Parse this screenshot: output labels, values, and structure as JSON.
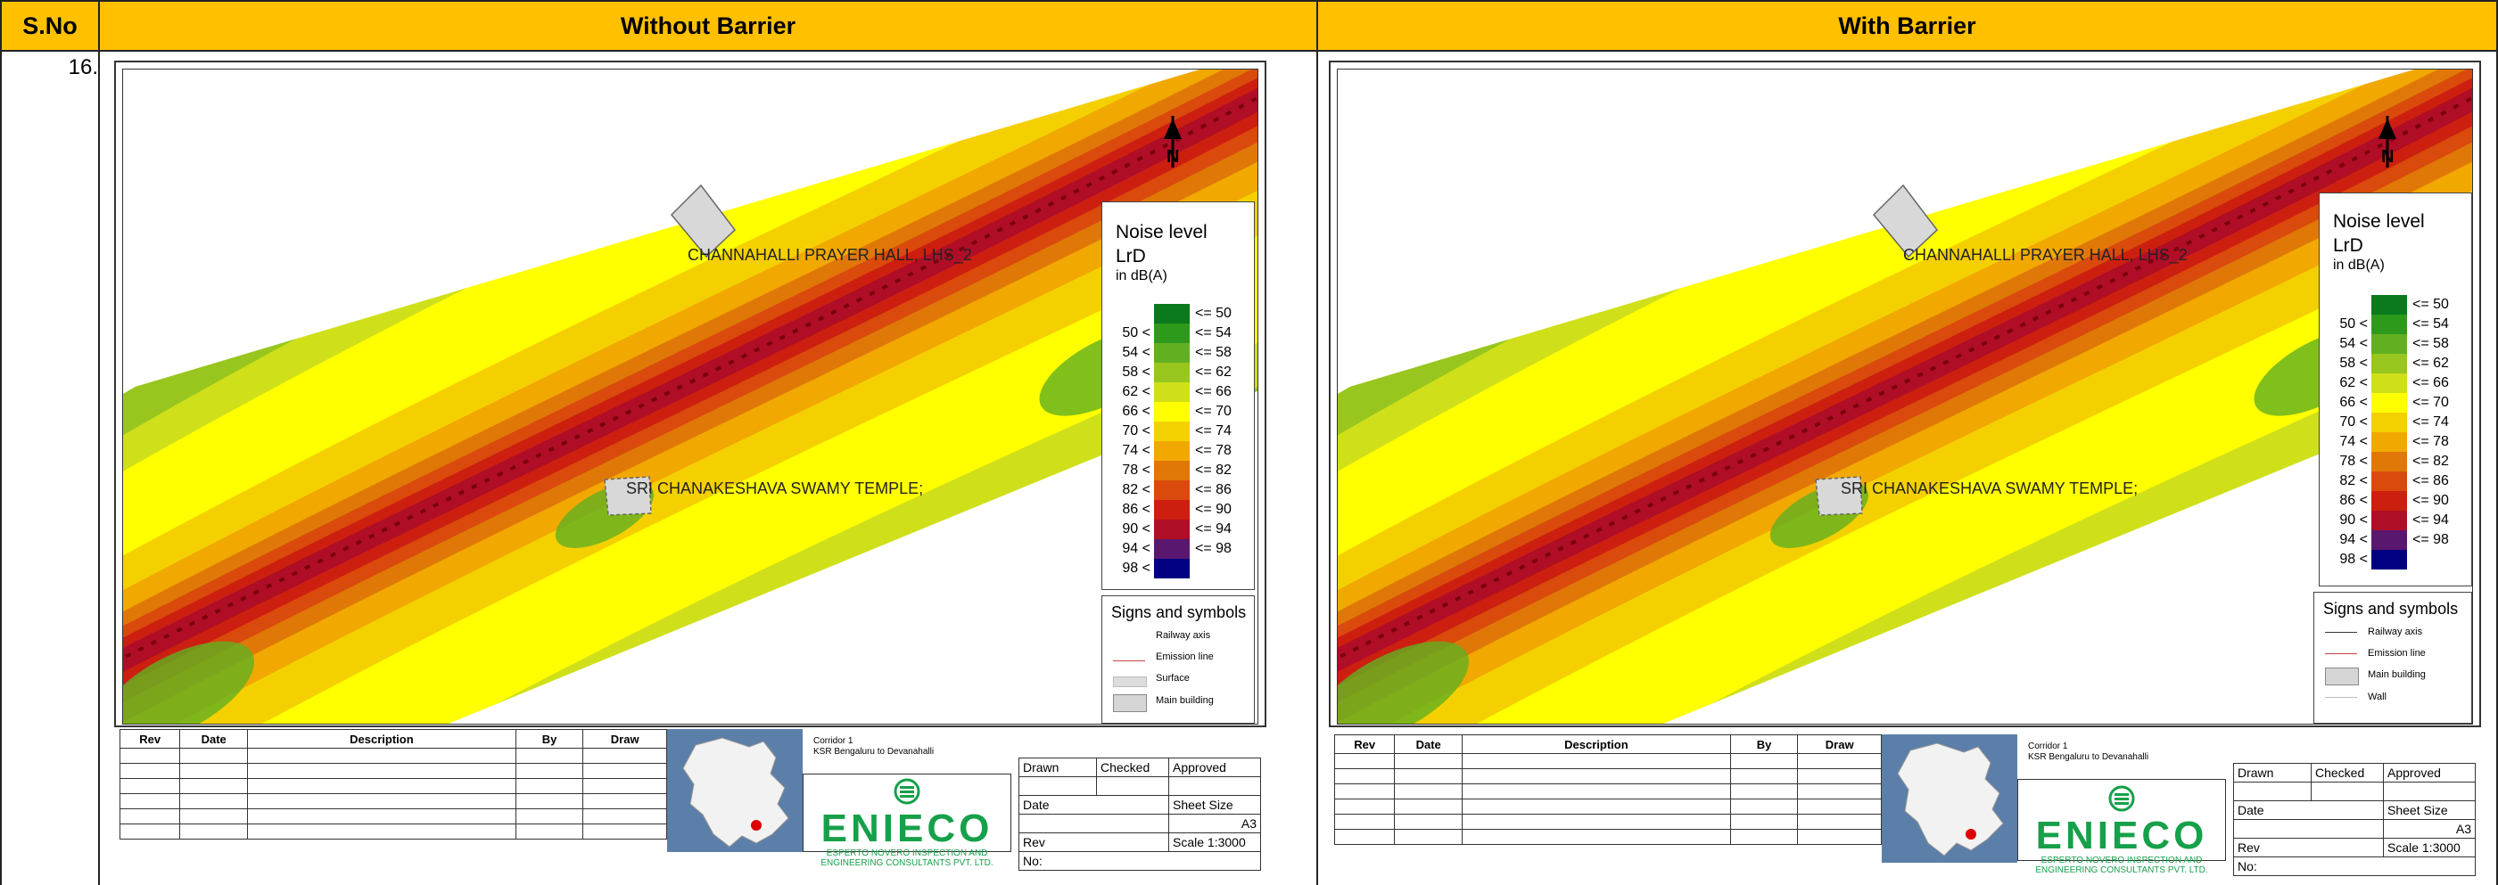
{
  "header": {
    "sno_label": "S.No",
    "col1_label": "Without Barrier",
    "col2_label": "With Barrier"
  },
  "row": {
    "sno": "16."
  },
  "map": {
    "labels": {
      "prayer_hall": "CHANNAHALLI PRAYER HALL, LHS_2",
      "temple": "SRI CHANAKESHAVA SWAMY TEMPLE;"
    },
    "north_label": "N",
    "colors": {
      "c50": "#0a7a1c",
      "c54": "#2e9a1c",
      "c58": "#62b021",
      "c62": "#98c61e",
      "c66": "#cfe01a",
      "c70": "#ffff00",
      "c74": "#f5d000",
      "c78": "#f1a800",
      "c82": "#e07808",
      "c86": "#d94a0c",
      "c90": "#cc1f10",
      "c94": "#b00e26",
      "c98": "#5a1770",
      "c99": "#000080"
    }
  },
  "legend": {
    "title_line1": "Noise level",
    "title_line2": "LrD",
    "unit": "in dB(A)",
    "rows": [
      {
        "low": "",
        "high": "<= 50",
        "color": "#0a7a1c"
      },
      {
        "low": "50 <",
        "high": "<= 54",
        "color": "#2e9a1c"
      },
      {
        "low": "54 <",
        "high": "<= 58",
        "color": "#62b021"
      },
      {
        "low": "58 <",
        "high": "<= 62",
        "color": "#98c61e"
      },
      {
        "low": "62 <",
        "high": "<= 66",
        "color": "#cfe01a"
      },
      {
        "low": "66 <",
        "high": "<= 70",
        "color": "#ffff00"
      },
      {
        "low": "70 <",
        "high": "<= 74",
        "color": "#f5d000"
      },
      {
        "low": "74 <",
        "high": "<= 78",
        "color": "#f1a800"
      },
      {
        "low": "78 <",
        "high": "<= 82",
        "color": "#e07808"
      },
      {
        "low": "82 <",
        "high": "<= 86",
        "color": "#d94a0c"
      },
      {
        "low": "86 <",
        "high": "<= 90",
        "color": "#cc1f10"
      },
      {
        "low": "90 <",
        "high": "<= 94",
        "color": "#b00e26"
      },
      {
        "low": "94 <",
        "high": "<= 98",
        "color": "#5a1770"
      },
      {
        "low": "98 <",
        "high": "",
        "color": "#000080"
      }
    ]
  },
  "symbols": {
    "title": "Signs and symbols",
    "left": [
      "Railway axis",
      "Emission line",
      "Surface",
      "Main building"
    ],
    "right": [
      "Railway axis",
      "Emission line",
      "Main building",
      "Wall"
    ]
  },
  "title_block": {
    "rev_headers": [
      "Rev",
      "Date",
      "Description",
      "By",
      "Draw"
    ],
    "corridor_line1": "Corridor 1",
    "corridor_line2": "KSR Bengaluru to Devanahalli",
    "drawn": "Drawn",
    "checked": "Checked",
    "approved": "Approved",
    "date": "Date",
    "sheet_size": "Sheet Size",
    "sheet_value": "A3",
    "rev": "Rev",
    "scale": "Scale 1:3000",
    "no": "No:",
    "logo_text": "ENIECO",
    "logo_sub1": "ESPERTO NOVERO INSPECTION AND",
    "logo_sub2": "ENGINEERING CONSULTANTS PVT. LTD."
  }
}
